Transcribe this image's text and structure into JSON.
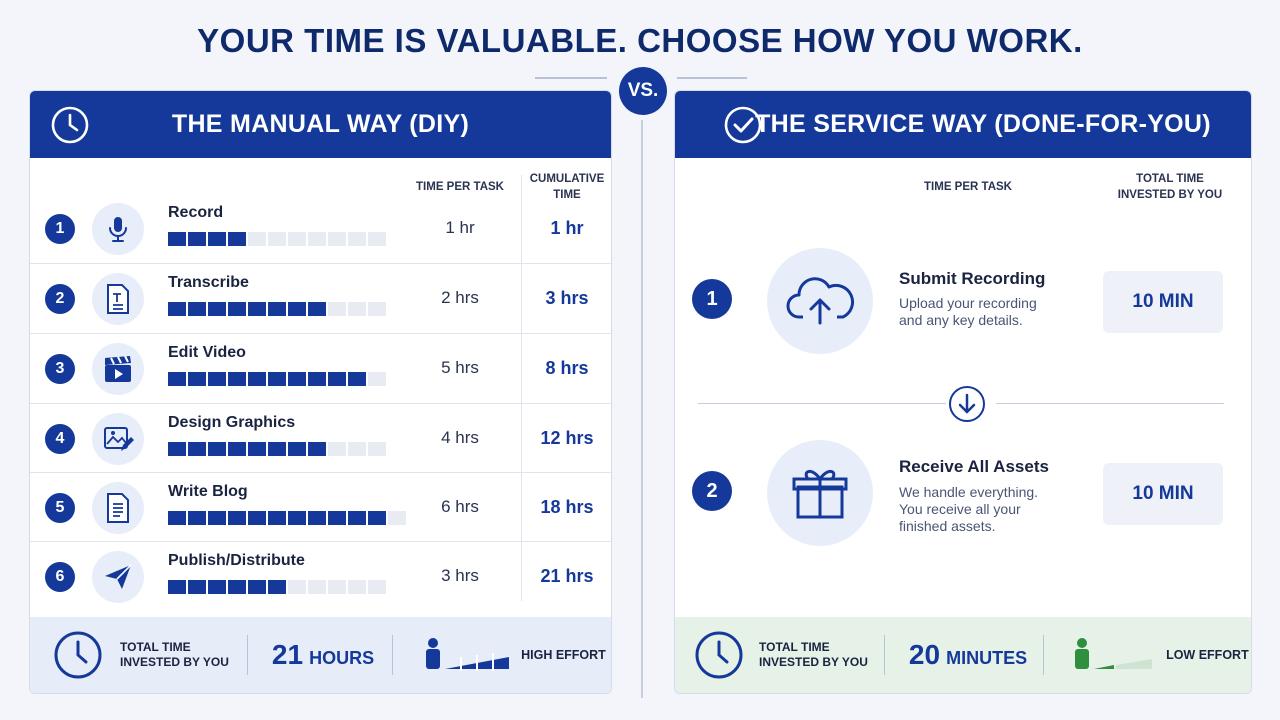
{
  "headline": "YOUR TIME IS VALUABLE. CHOOSE HOW YOU WORK.",
  "vs_label": "VS.",
  "manual": {
    "title": "THE MANUAL WAY (DIY)",
    "col_time_per_task": "TIME PER TASK",
    "col_cumulative_line1": "CUMULATIVE",
    "col_cumulative_line2": "TIME",
    "rows": [
      {
        "num": "1",
        "icon": "microphone-icon",
        "name": "Record",
        "per": "1 hr",
        "cum": "1 hr",
        "filled": 4,
        "segments": 11
      },
      {
        "num": "2",
        "icon": "document-text-icon",
        "name": "Transcribe",
        "per": "2 hrs",
        "cum": "3 hrs",
        "filled": 8,
        "segments": 11
      },
      {
        "num": "3",
        "icon": "clapperboard-icon",
        "name": "Edit Video",
        "per": "5 hrs",
        "cum": "8 hrs",
        "filled": 10,
        "segments": 11
      },
      {
        "num": "4",
        "icon": "image-edit-icon",
        "name": "Design Graphics",
        "per": "4 hrs",
        "cum": "12 hrs",
        "filled": 8,
        "segments": 11
      },
      {
        "num": "5",
        "icon": "document-lines-icon",
        "name": "Write Blog",
        "per": "6 hrs",
        "cum": "18 hrs",
        "filled": 11,
        "segments": 12
      },
      {
        "num": "6",
        "icon": "paper-plane-icon",
        "name": "Publish/Distribute",
        "per": "3 hrs",
        "cum": "21 hrs",
        "filled": 6,
        "segments": 11
      }
    ],
    "footer": {
      "label_line1": "TOTAL TIME",
      "label_line2": "INVESTED BY YOU",
      "total_num": "21",
      "total_unit": "HOURS",
      "effort": "HIGH EFFORT"
    }
  },
  "service": {
    "title": "THE SERVICE WAY (DONE-FOR-YOU)",
    "col_time_per_task": "TIME PER TASK",
    "col_total_line1": "TOTAL TIME",
    "col_total_line2": "INVESTED BY YOU",
    "steps": [
      {
        "num": "1",
        "icon": "cloud-upload-icon",
        "title": "Submit Recording",
        "desc_line1": "Upload your recording",
        "desc_line2": "and any key details.",
        "desc_line3": "",
        "time": "10 MIN"
      },
      {
        "num": "2",
        "icon": "gift-icon",
        "title": "Receive All Assets",
        "desc_line1": "We handle everything.",
        "desc_line2": "You receive all your",
        "desc_line3": "finished assets.",
        "time": "10 MIN"
      }
    ],
    "footer": {
      "label_line1": "TOTAL TIME",
      "label_line2": "INVESTED BY YOU",
      "total_num": "20",
      "total_unit": "MINUTES",
      "effort": "LOW EFFORT"
    }
  },
  "colors": {
    "brand_blue": "#14399a",
    "footer_blue_bg": "#e6ecf8",
    "footer_green_bg": "#e6f2e8",
    "effort_green": "#2f8f3e"
  }
}
